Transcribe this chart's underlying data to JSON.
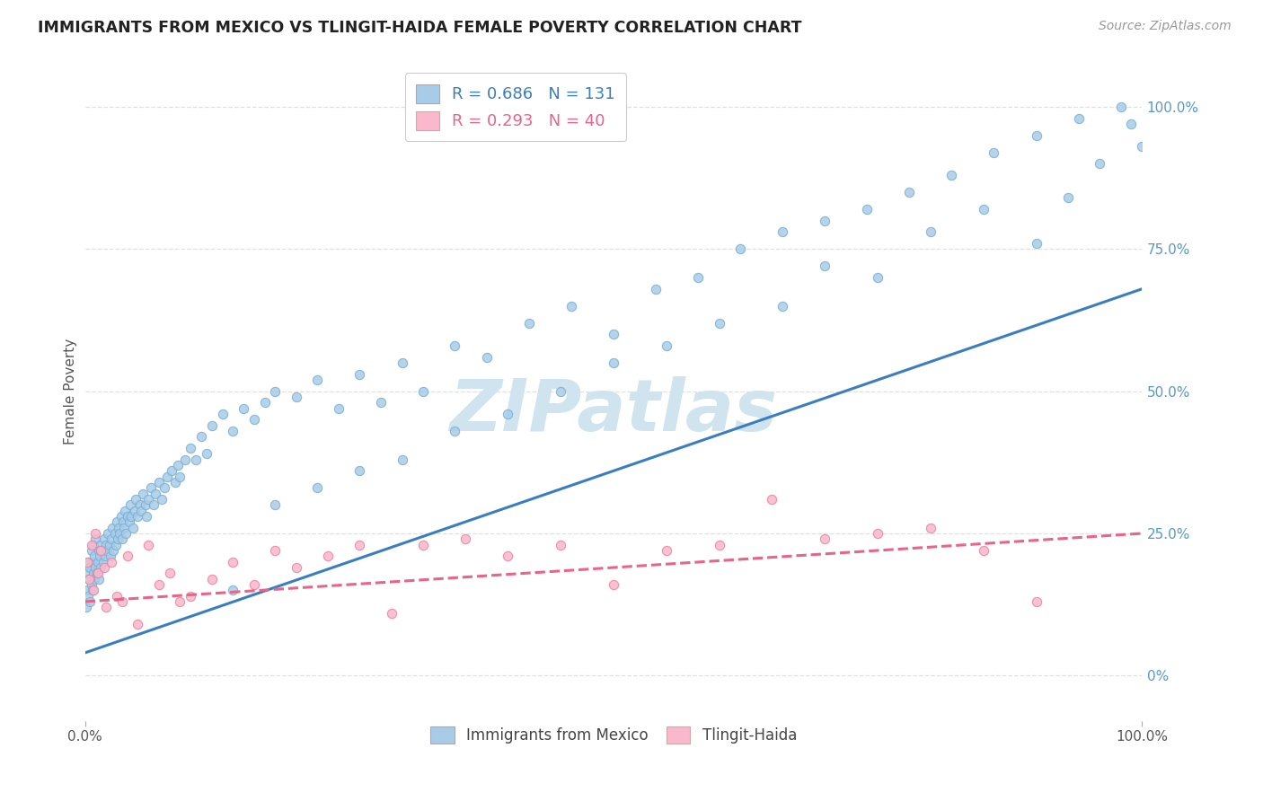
{
  "title": "IMMIGRANTS FROM MEXICO VS TLINGIT-HAIDA FEMALE POVERTY CORRELATION CHART",
  "source": "Source: ZipAtlas.com",
  "ylabel": "Female Poverty",
  "legend_blue_r": "R = 0.686",
  "legend_blue_n": "N = 131",
  "legend_pink_r": "R = 0.293",
  "legend_pink_n": "N = 40",
  "blue_color": "#a8cce8",
  "blue_edge_color": "#7aafd4",
  "pink_color": "#f9b8cb",
  "pink_edge_color": "#f07fa0",
  "blue_line_color": "#3a7ebf",
  "pink_line_color": "#e8648a",
  "watermark_color": "#d0e4f0",
  "grid_color": "#e0e0e0",
  "right_tick_color": "#5599cc",
  "xlim": [
    0.0,
    1.0
  ],
  "ylim": [
    -0.08,
    1.08
  ],
  "blue_line": [
    0.0,
    0.04,
    1.0,
    0.68
  ],
  "pink_line": [
    0.0,
    0.13,
    1.0,
    0.25
  ],
  "blue_x": [
    0.001,
    0.002,
    0.003,
    0.003,
    0.004,
    0.004,
    0.005,
    0.005,
    0.006,
    0.006,
    0.007,
    0.007,
    0.008,
    0.008,
    0.009,
    0.009,
    0.01,
    0.01,
    0.011,
    0.012,
    0.013,
    0.013,
    0.014,
    0.015,
    0.015,
    0.016,
    0.017,
    0.018,
    0.019,
    0.02,
    0.021,
    0.022,
    0.023,
    0.024,
    0.025,
    0.026,
    0.027,
    0.028,
    0.029,
    0.03,
    0.031,
    0.032,
    0.033,
    0.034,
    0.035,
    0.036,
    0.037,
    0.038,
    0.039,
    0.04,
    0.042,
    0.043,
    0.044,
    0.045,
    0.047,
    0.048,
    0.05,
    0.052,
    0.053,
    0.055,
    0.057,
    0.058,
    0.06,
    0.062,
    0.065,
    0.067,
    0.07,
    0.073,
    0.075,
    0.078,
    0.082,
    0.085,
    0.088,
    0.09,
    0.095,
    0.1,
    0.105,
    0.11,
    0.115,
    0.12,
    0.13,
    0.14,
    0.15,
    0.16,
    0.17,
    0.18,
    0.2,
    0.22,
    0.24,
    0.26,
    0.28,
    0.3,
    0.32,
    0.35,
    0.38,
    0.42,
    0.46,
    0.5,
    0.54,
    0.58,
    0.62,
    0.66,
    0.7,
    0.74,
    0.78,
    0.82,
    0.86,
    0.9,
    0.94,
    0.98,
    0.99,
    1.0,
    0.93,
    0.96,
    0.9,
    0.85,
    0.8,
    0.75,
    0.7,
    0.66,
    0.6,
    0.55,
    0.5,
    0.45,
    0.4,
    0.35,
    0.3,
    0.26,
    0.22,
    0.18,
    0.14
  ],
  "blue_y": [
    0.12,
    0.15,
    0.18,
    0.14,
    0.17,
    0.2,
    0.13,
    0.19,
    0.16,
    0.22,
    0.15,
    0.2,
    0.18,
    0.23,
    0.17,
    0.21,
    0.19,
    0.24,
    0.18,
    0.2,
    0.22,
    0.17,
    0.21,
    0.23,
    0.19,
    0.22,
    0.2,
    0.24,
    0.21,
    0.23,
    0.22,
    0.25,
    0.23,
    0.21,
    0.24,
    0.26,
    0.22,
    0.25,
    0.23,
    0.27,
    0.24,
    0.26,
    0.25,
    0.28,
    0.24,
    0.27,
    0.26,
    0.29,
    0.25,
    0.28,
    0.27,
    0.3,
    0.28,
    0.26,
    0.29,
    0.31,
    0.28,
    0.3,
    0.29,
    0.32,
    0.3,
    0.28,
    0.31,
    0.33,
    0.3,
    0.32,
    0.34,
    0.31,
    0.33,
    0.35,
    0.36,
    0.34,
    0.37,
    0.35,
    0.38,
    0.4,
    0.38,
    0.42,
    0.39,
    0.44,
    0.46,
    0.43,
    0.47,
    0.45,
    0.48,
    0.5,
    0.49,
    0.52,
    0.47,
    0.53,
    0.48,
    0.55,
    0.5,
    0.58,
    0.56,
    0.62,
    0.65,
    0.6,
    0.68,
    0.7,
    0.75,
    0.78,
    0.8,
    0.82,
    0.85,
    0.88,
    0.92,
    0.95,
    0.98,
    1.0,
    0.97,
    0.93,
    0.84,
    0.9,
    0.76,
    0.82,
    0.78,
    0.7,
    0.72,
    0.65,
    0.62,
    0.58,
    0.55,
    0.5,
    0.46,
    0.43,
    0.38,
    0.36,
    0.33,
    0.3,
    0.15
  ],
  "pink_x": [
    0.002,
    0.004,
    0.006,
    0.008,
    0.01,
    0.012,
    0.015,
    0.018,
    0.02,
    0.025,
    0.03,
    0.035,
    0.04,
    0.05,
    0.06,
    0.07,
    0.08,
    0.09,
    0.1,
    0.12,
    0.14,
    0.16,
    0.18,
    0.2,
    0.23,
    0.26,
    0.29,
    0.32,
    0.36,
    0.4,
    0.45,
    0.5,
    0.55,
    0.6,
    0.65,
    0.7,
    0.75,
    0.8,
    0.85,
    0.9
  ],
  "pink_y": [
    0.2,
    0.17,
    0.23,
    0.15,
    0.25,
    0.18,
    0.22,
    0.19,
    0.12,
    0.2,
    0.14,
    0.13,
    0.21,
    0.09,
    0.23,
    0.16,
    0.18,
    0.13,
    0.14,
    0.17,
    0.2,
    0.16,
    0.22,
    0.19,
    0.21,
    0.23,
    0.11,
    0.23,
    0.24,
    0.21,
    0.23,
    0.16,
    0.22,
    0.23,
    0.31,
    0.24,
    0.25,
    0.26,
    0.22,
    0.13
  ]
}
